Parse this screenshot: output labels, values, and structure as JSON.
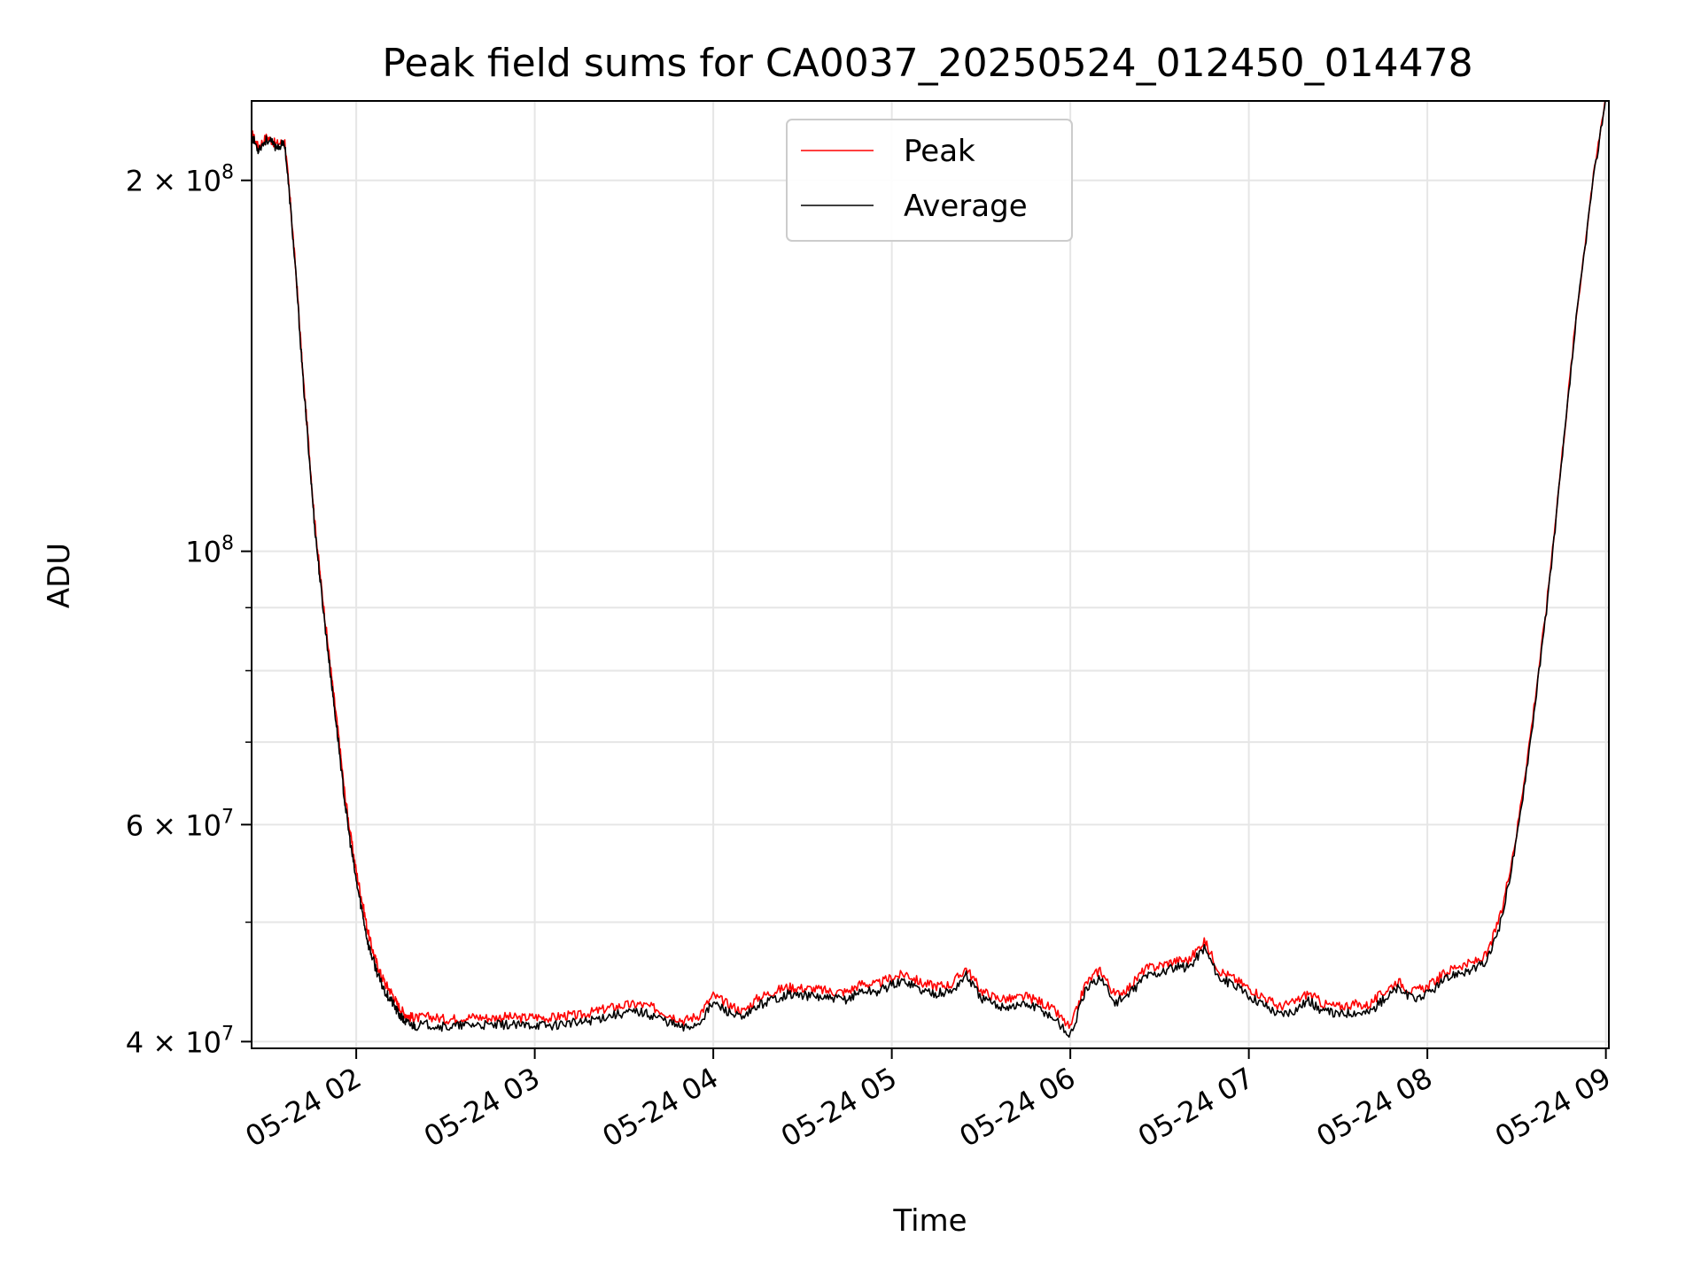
{
  "chart_data": {
    "type": "line",
    "title": "Peak field sums for CA0037_20250524_012450_014478",
    "xlabel": "Time",
    "ylabel": "ADU",
    "yscale": "log",
    "ylim": [
      39500000,
      232000000
    ],
    "xlim": [
      "05-24 01:24:50",
      "05-24 09:01:00"
    ],
    "grid": true,
    "legend_position": "top-center",
    "x_ticks": [
      "05-24 02",
      "05-24 03",
      "05-24 04",
      "05-24 05",
      "05-24 06",
      "05-24 07",
      "05-24 08",
      "05-24 09"
    ],
    "y_major_ticks": [
      {
        "value": 40000000,
        "mantissa": "4",
        "exponent": "7"
      },
      {
        "value": 60000000,
        "mantissa": "6",
        "exponent": "7"
      },
      {
        "value": 100000000,
        "mantissa": "",
        "exponent": "8"
      },
      {
        "value": 200000000,
        "mantissa": "2",
        "exponent": "8"
      }
    ],
    "y_minor_gridlines": [
      50000000,
      70000000,
      80000000,
      90000000
    ],
    "x_unit": "05-24 HH:MM",
    "series": [
      {
        "name": "Peak",
        "color": "#ff0000",
        "x": [
          "01:25",
          "01:27",
          "01:30",
          "01:33",
          "01:36",
          "01:38",
          "01:40",
          "01:42",
          "01:44",
          "01:46",
          "01:48",
          "01:50",
          "01:52",
          "01:54",
          "01:56",
          "01:58",
          "02:00",
          "02:02",
          "02:04",
          "02:06",
          "02:08",
          "02:10",
          "02:12",
          "02:14",
          "02:16",
          "02:18",
          "02:20",
          "02:25",
          "02:30",
          "02:35",
          "02:40",
          "02:45",
          "02:50",
          "02:55",
          "03:00",
          "03:05",
          "03:10",
          "03:15",
          "03:20",
          "03:25",
          "03:30",
          "03:35",
          "03:40",
          "03:45",
          "03:50",
          "03:55",
          "04:00",
          "04:05",
          "04:10",
          "04:15",
          "04:20",
          "04:25",
          "04:30",
          "04:35",
          "04:40",
          "04:45",
          "04:50",
          "04:55",
          "05:00",
          "05:05",
          "05:10",
          "05:15",
          "05:20",
          "05:25",
          "05:30",
          "05:35",
          "05:40",
          "05:45",
          "05:50",
          "05:55",
          "06:00",
          "06:05",
          "06:10",
          "06:15",
          "06:20",
          "06:25",
          "06:30",
          "06:35",
          "06:40",
          "06:45",
          "06:50",
          "06:55",
          "07:00",
          "07:05",
          "07:10",
          "07:15",
          "07:20",
          "07:25",
          "07:30",
          "07:35",
          "07:40",
          "07:45",
          "07:50",
          "07:55",
          "08:00",
          "08:05",
          "08:10",
          "08:15",
          "08:20",
          "08:25",
          "08:30",
          "08:35",
          "08:40",
          "08:45",
          "08:50",
          "08:55",
          "09:00"
        ],
        "y": [
          218000000,
          213000000,
          217000000,
          214000000,
          215000000,
          190000000,
          165000000,
          140000000,
          122000000,
          106000000,
          95000000,
          86000000,
          78000000,
          71000000,
          64000000,
          59000000,
          55000000,
          52000000,
          49000000,
          47000000,
          45500000,
          44500000,
          43800000,
          42800000,
          42200000,
          41900000,
          41800000,
          41900000,
          41700000,
          41800000,
          41900000,
          41800000,
          41900000,
          41800000,
          41900000,
          41800000,
          42000000,
          42000000,
          42300000,
          42600000,
          42800000,
          42900000,
          42600000,
          42100000,
          41600000,
          42000000,
          43600000,
          42900000,
          42300000,
          43400000,
          43900000,
          44300000,
          44200000,
          44100000,
          43900000,
          43900000,
          44600000,
          44500000,
          45100000,
          45400000,
          44600000,
          44400000,
          44500000,
          45900000,
          44000000,
          43400000,
          43300000,
          43500000,
          43100000,
          42300000,
          41000000,
          44500000,
          45800000,
          43600000,
          44300000,
          45800000,
          46100000,
          46500000,
          46600000,
          48300000,
          45700000,
          45000000,
          44200000,
          43500000,
          42700000,
          43000000,
          43800000,
          42900000,
          42700000,
          42900000,
          42800000,
          43800000,
          44800000,
          43900000,
          44300000,
          45300000,
          46100000,
          46300000,
          47000000,
          51000000,
          59000000,
          72000000,
          90000000,
          118000000,
          155000000,
          195000000,
          235000000
        ]
      },
      {
        "name": "Average",
        "color": "#000000",
        "x": [
          "01:25",
          "01:27",
          "01:30",
          "01:33",
          "01:36",
          "01:38",
          "01:40",
          "01:42",
          "01:44",
          "01:46",
          "01:48",
          "01:50",
          "01:52",
          "01:54",
          "01:56",
          "01:58",
          "02:00",
          "02:02",
          "02:04",
          "02:06",
          "02:08",
          "02:10",
          "02:12",
          "02:14",
          "02:16",
          "02:18",
          "02:20",
          "02:25",
          "02:30",
          "02:35",
          "02:40",
          "02:45",
          "02:50",
          "02:55",
          "03:00",
          "03:05",
          "03:10",
          "03:15",
          "03:20",
          "03:25",
          "03:30",
          "03:35",
          "03:40",
          "03:45",
          "03:50",
          "03:55",
          "04:00",
          "04:05",
          "04:10",
          "04:15",
          "04:20",
          "04:25",
          "04:30",
          "04:35",
          "04:40",
          "04:45",
          "04:50",
          "04:55",
          "05:00",
          "05:05",
          "05:10",
          "05:15",
          "05:20",
          "05:25",
          "05:30",
          "05:35",
          "05:40",
          "05:45",
          "05:50",
          "05:55",
          "06:00",
          "06:05",
          "06:10",
          "06:15",
          "06:20",
          "06:25",
          "06:30",
          "06:35",
          "06:40",
          "06:45",
          "06:50",
          "06:55",
          "07:00",
          "07:05",
          "07:10",
          "07:15",
          "07:20",
          "07:25",
          "07:30",
          "07:35",
          "07:40",
          "07:45",
          "07:50",
          "07:55",
          "08:00",
          "08:05",
          "08:10",
          "08:15",
          "08:20",
          "08:25",
          "08:30",
          "08:35",
          "08:40",
          "08:45",
          "08:50",
          "08:55",
          "09:00"
        ],
        "y": [
          217000000,
          212000000,
          216000000,
          213000000,
          214000000,
          189000000,
          164000000,
          139000000,
          121000000,
          105000000,
          94000000,
          85000000,
          77000000,
          70000000,
          63000000,
          58000000,
          54000000,
          51000000,
          48000000,
          46300000,
          44800000,
          43800000,
          43100000,
          42200000,
          41600000,
          41300000,
          41200000,
          41300000,
          41100000,
          41200000,
          41300000,
          41200000,
          41300000,
          41200000,
          41300000,
          41200000,
          41400000,
          41400000,
          41700000,
          42000000,
          42200000,
          42300000,
          42000000,
          41500000,
          41000000,
          41400000,
          43000000,
          42300000,
          41700000,
          42800000,
          43300000,
          43700000,
          43600000,
          43500000,
          43300000,
          43300000,
          44000000,
          43900000,
          44500000,
          44800000,
          44000000,
          43800000,
          43900000,
          45300000,
          43400000,
          42800000,
          42700000,
          42900000,
          42500000,
          41700000,
          40400000,
          43900000,
          45200000,
          43000000,
          43700000,
          45200000,
          45500000,
          45900000,
          46000000,
          47700000,
          45100000,
          44400000,
          43600000,
          42900000,
          42100000,
          42400000,
          43200000,
          42300000,
          42100000,
          42300000,
          42200000,
          43200000,
          44200000,
          43300000,
          43700000,
          44700000,
          45500000,
          45700000,
          46400000,
          50300000,
          58300000,
          71300000,
          89300000,
          117000000,
          154000000,
          194000000,
          234000000
        ]
      }
    ]
  }
}
